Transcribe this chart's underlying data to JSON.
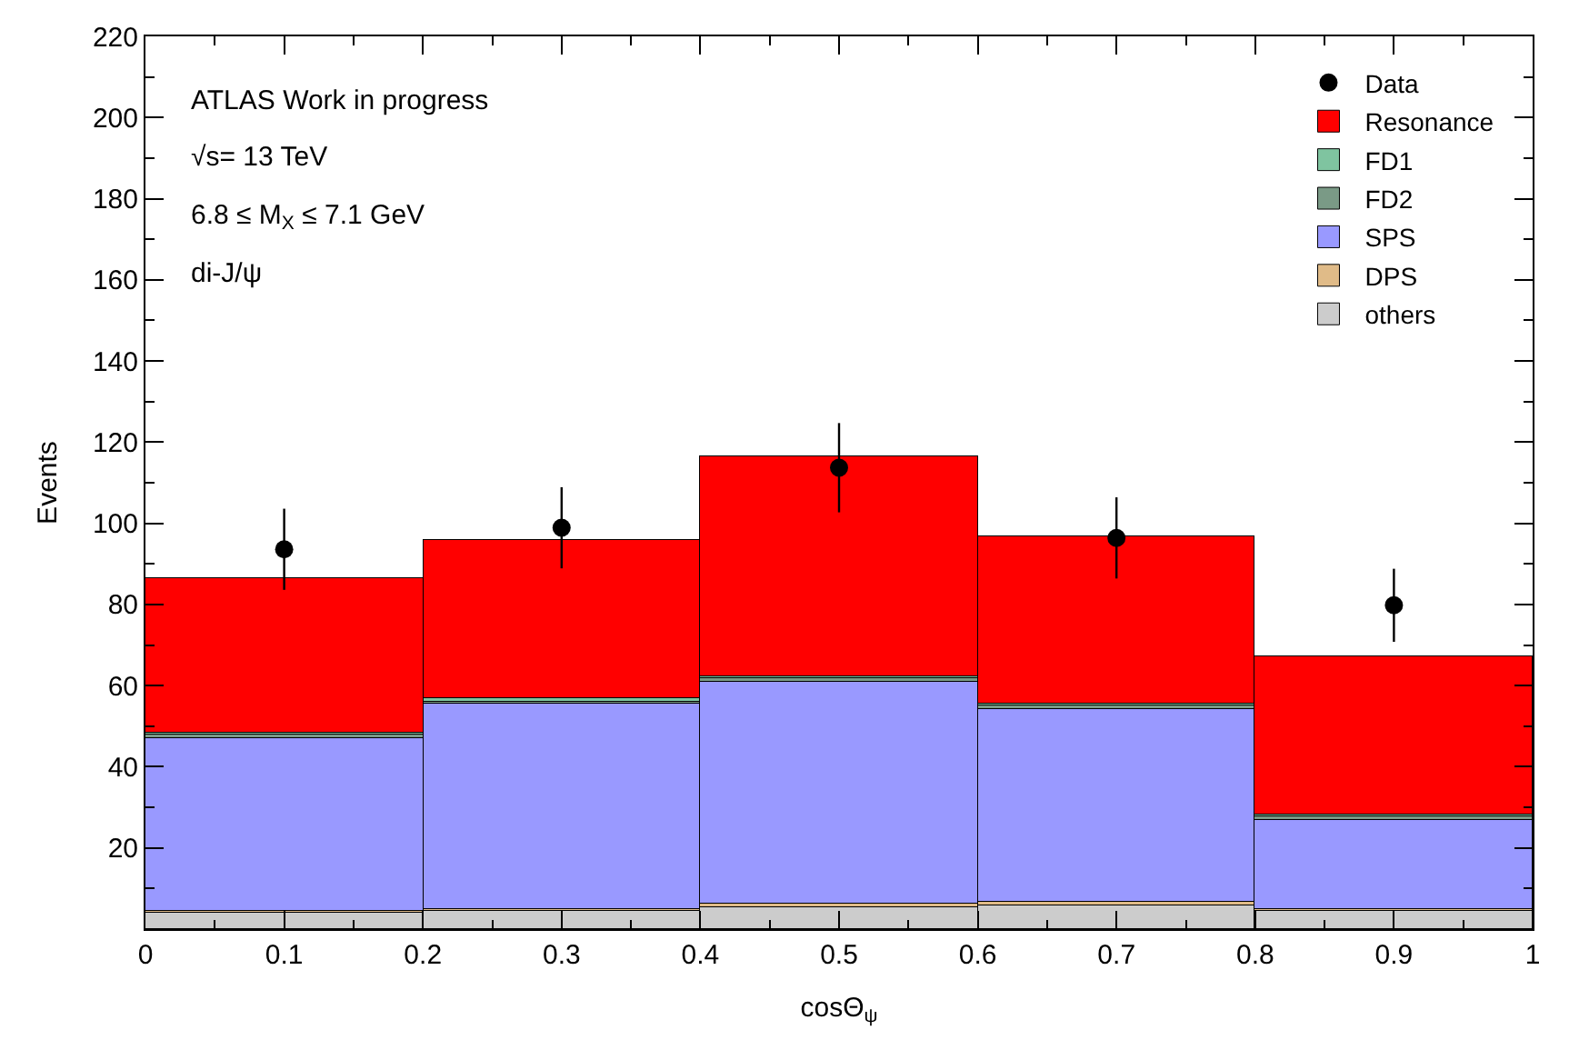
{
  "chart_data": {
    "type": "bar",
    "stacked": true,
    "xlabel": "cosΘ$_{ψ}$",
    "ylabel": "Events",
    "x": [
      0.1,
      0.3,
      0.5,
      0.7,
      0.9
    ],
    "xlim": [
      0,
      1
    ],
    "xticks": [
      0,
      0.1,
      0.2,
      0.3,
      0.4,
      0.5,
      0.6,
      0.7,
      0.8,
      0.9,
      1
    ],
    "ylim": [
      0,
      220
    ],
    "yticks": [
      20,
      40,
      60,
      80,
      100,
      120,
      140,
      160,
      180,
      200,
      220
    ],
    "legend": "top right",
    "annotations": [
      "ATLAS Work in progress",
      "√s= 13 TeV",
      "6.8 ≤ M$_{X}$ ≤ 7.1 GeV",
      "di-J/ψ"
    ],
    "series": [
      {
        "name": "others",
        "color": "#cccccc",
        "values": [
          4,
          4.5,
          5.5,
          6,
          4.5
        ]
      },
      {
        "name": "DPS",
        "color": "#e0bb88",
        "values": [
          0.3,
          0.5,
          0.9,
          0.9,
          0.5
        ]
      },
      {
        "name": "SPS",
        "color": "#9999ff",
        "values": [
          42.9,
          50.4,
          54.7,
          47.4,
          22
        ]
      },
      {
        "name": "FD2",
        "color": "#7a9a86",
        "values": [
          0.8,
          0.8,
          0.8,
          0.8,
          0.8
        ]
      },
      {
        "name": "FD1",
        "color": "#7fc4a0",
        "values": [
          0.5,
          0.5,
          0.5,
          0.5,
          0.5
        ]
      },
      {
        "name": "Resonance",
        "color": "#ff0000",
        "values": [
          37.8,
          39.3,
          54.3,
          41.4,
          39.1
        ]
      },
      {
        "name": "Data",
        "type": "scatter",
        "marker": "circle",
        "color": "#000000",
        "values": [
          93.6,
          98.9,
          113.7,
          96.4,
          79.8
        ],
        "errors": [
          10,
          10,
          11,
          10,
          9
        ]
      }
    ]
  }
}
